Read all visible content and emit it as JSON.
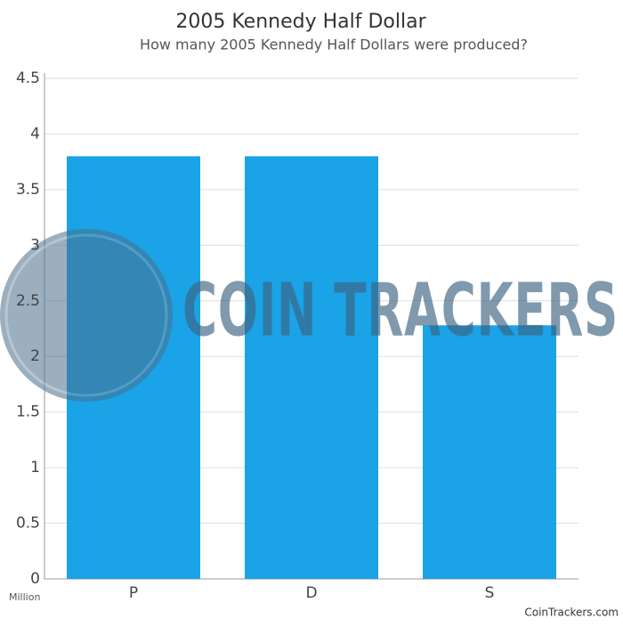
{
  "chart_data": {
    "type": "bar",
    "title": "2005 Kennedy Half Dollar",
    "subtitle": "How many 2005 Kennedy Half Dollars were produced?",
    "y_unit": "Million",
    "credit": "CoinTrackers.com",
    "watermark": "COIN TRACKERS",
    "categories": [
      "P",
      "D",
      "S"
    ],
    "values": [
      3.8,
      3.8,
      2.28
    ],
    "color": "#1aa3e6",
    "ylim": [
      0,
      4.5
    ],
    "yticks": [
      0,
      0.5,
      1,
      1.5,
      2,
      2.5,
      3,
      3.5,
      4,
      4.5
    ],
    "grid": true
  }
}
